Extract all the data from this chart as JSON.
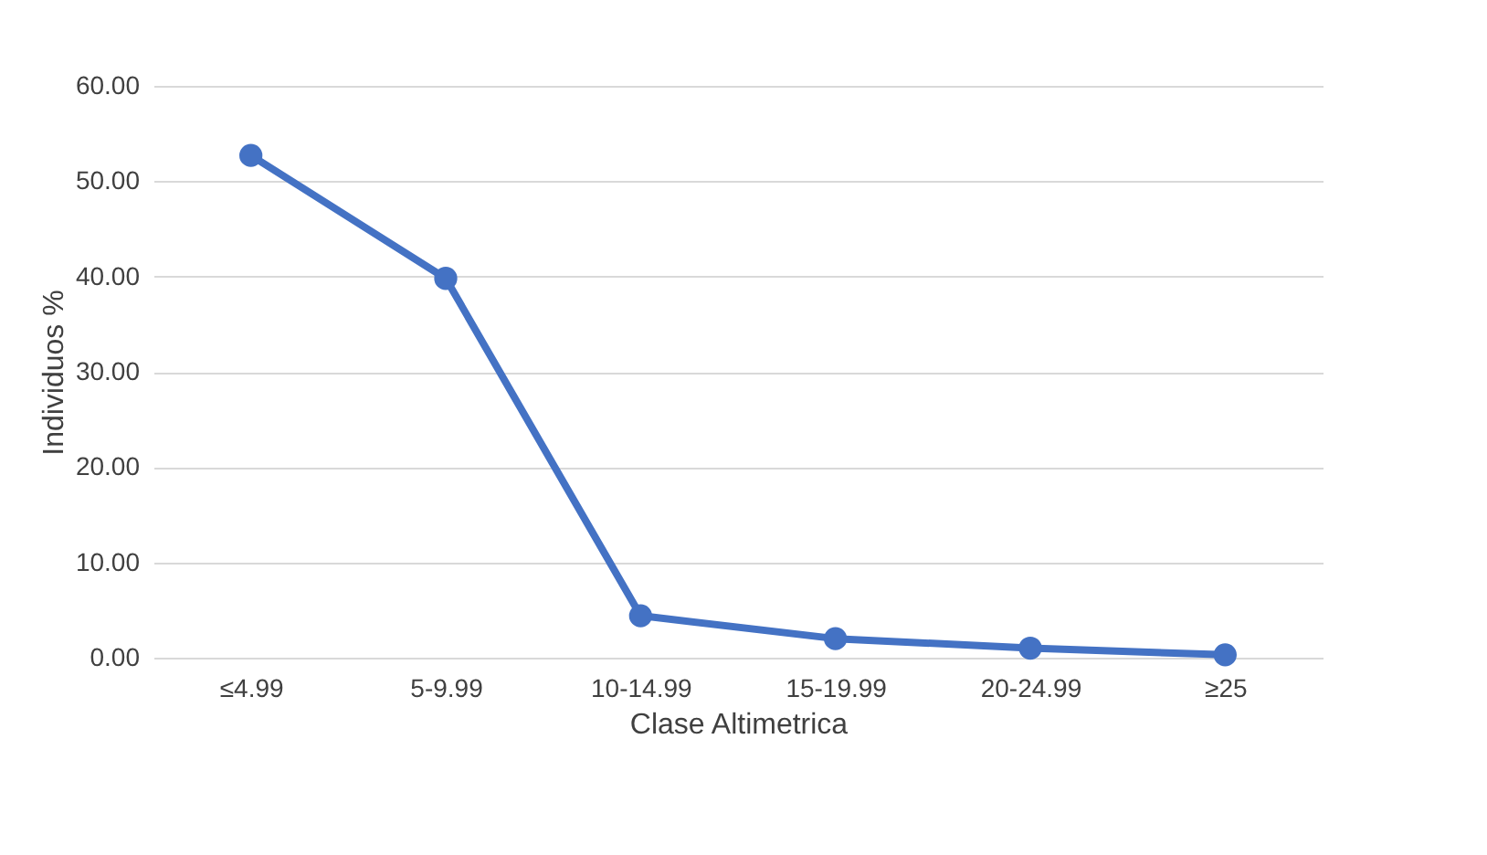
{
  "chart_data": {
    "type": "line",
    "xlabel": "Clase Altimetrica",
    "ylabel": "Individuos %",
    "categories": [
      "≤4.99",
      "5-9.99",
      "10-14.99",
      "15-19.99",
      "20-24.99",
      "≥25"
    ],
    "series": [
      {
        "color": "#4472c4",
        "values": [
          52.7,
          39.8,
          4.4,
          2.0,
          1.0,
          0.3
        ]
      }
    ],
    "ylim": [
      0,
      60
    ],
    "yticks": [
      {
        "value": 0,
        "label": "0.00"
      },
      {
        "value": 10,
        "label": "10.00"
      },
      {
        "value": 20,
        "label": "20.00"
      },
      {
        "value": 30,
        "label": "30.00"
      },
      {
        "value": 40,
        "label": "40.00"
      },
      {
        "value": 50,
        "label": "50.00"
      },
      {
        "value": 60,
        "label": "60.00"
      }
    ],
    "grid": "y",
    "marker": "circle",
    "line_style": "solid"
  }
}
